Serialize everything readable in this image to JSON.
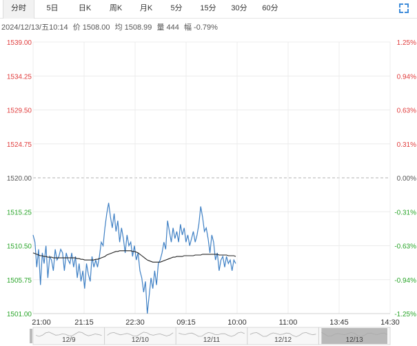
{
  "tabs": [
    {
      "label": "分时",
      "active": true
    },
    {
      "label": "5日",
      "active": false
    },
    {
      "label": "日K",
      "active": false
    },
    {
      "label": "周K",
      "active": false
    },
    {
      "label": "月K",
      "active": false
    },
    {
      "label": "5分",
      "active": false
    },
    {
      "label": "15分",
      "active": false
    },
    {
      "label": "30分",
      "active": false
    },
    {
      "label": "60分",
      "active": false
    }
  ],
  "fullscreen_icon": "fullscreen-icon",
  "info": {
    "datetime": "2024/12/13/五10:14",
    "price": "价 1508.00",
    "avg": "均 1508.99",
    "volume": "量 444",
    "change": "幅 -0.79%"
  },
  "colors": {
    "up": "#e03c3c",
    "down": "#2aa52a",
    "price_line": "#3d7fc4",
    "avg_line": "#222222",
    "axis_text": "#555555"
  },
  "chart_data": {
    "type": "line",
    "base": 1520.0,
    "ylim": [
      1501.0,
      1539.0
    ],
    "y_ticks_left": [
      "1539.00",
      "1534.25",
      "1529.50",
      "1524.75",
      "1520.00",
      "1515.25",
      "1510.50",
      "1505.75",
      "1501.00"
    ],
    "y_ticks_right": [
      "1.25%",
      "0.94%",
      "0.63%",
      "0.31%",
      "0.00%",
      "-0.31%",
      "-0.63%",
      "-0.94%",
      "-1.25%"
    ],
    "x_ticks": [
      "21:00",
      "21:15",
      "22:30",
      "09:15",
      "10:00",
      "11:00",
      "13:45",
      "14:30"
    ],
    "series": [
      {
        "values": [
          1512.0,
          1511.0,
          1507.5,
          1510.0,
          1505.0,
          1509.5,
          1508.0,
          1510.5,
          1506.0,
          1509.0,
          1508.5,
          1507.0,
          1510.0,
          1508.5,
          1509.0,
          1510.0,
          1509.5,
          1507.0,
          1509.5,
          1508.5,
          1508.0,
          1509.5,
          1507.5,
          1509.0,
          1506.0,
          1508.0,
          1505.5,
          1507.0,
          1504.5,
          1508.0,
          1506.5,
          1505.5,
          1509.0,
          1507.5,
          1508.5,
          1507.5,
          1509.0,
          1511.0,
          1510.5,
          1513.0,
          1515.0,
          1516.5,
          1514.5,
          1513.0,
          1515.0,
          1512.5,
          1514.0,
          1511.0,
          1513.0,
          1511.5,
          1509.5,
          1512.0,
          1510.5,
          1511.0,
          1509.0,
          1510.5,
          1508.5,
          1509.5,
          1507.0,
          1506.0,
          1504.0,
          1505.5,
          1501.0,
          1503.5,
          1506.0,
          1504.5,
          1507.0,
          1505.0,
          1508.0,
          1508.5,
          1509.5,
          1511.0,
          1510.0,
          1514.0,
          1512.5,
          1511.0,
          1513.0,
          1511.5,
          1512.5,
          1511.0,
          1513.5,
          1512.0,
          1513.0,
          1511.0,
          1512.0,
          1510.5,
          1511.5,
          1512.5,
          1511.0,
          1512.0,
          1513.5,
          1516.0,
          1514.5,
          1512.5,
          1513.0,
          1511.5,
          1509.5,
          1512.0,
          1511.0,
          1508.5,
          1509.5,
          1507.0,
          1508.5,
          1509.0,
          1507.5,
          1509.0,
          1508.0,
          1508.5,
          1507.0,
          1508.5,
          1508.0
        ],
        "avg": [
          1509.5,
          1509.4,
          1509.3,
          1509.2,
          1509.1,
          1509.1,
          1509.0,
          1509.0,
          1508.9,
          1508.9,
          1508.9,
          1508.8,
          1508.8,
          1508.8,
          1508.8,
          1508.8,
          1508.8,
          1508.8,
          1508.8,
          1508.8,
          1508.8,
          1508.8,
          1508.8,
          1508.8,
          1508.7,
          1508.7,
          1508.6,
          1508.6,
          1508.5,
          1508.5,
          1508.5,
          1508.5,
          1508.5,
          1508.5,
          1508.6,
          1508.6,
          1508.7,
          1508.8,
          1508.9,
          1509.0,
          1509.2,
          1509.3,
          1509.4,
          1509.5,
          1509.6,
          1509.7,
          1509.7,
          1509.8,
          1509.8,
          1509.8,
          1509.8,
          1509.8,
          1509.8,
          1509.8,
          1509.7,
          1509.7,
          1509.6,
          1509.5,
          1509.3,
          1509.1,
          1508.9,
          1508.7,
          1508.5,
          1508.4,
          1508.3,
          1508.2,
          1508.2,
          1508.2,
          1508.2,
          1508.2,
          1508.3,
          1508.4,
          1508.5,
          1508.6,
          1508.7,
          1508.8,
          1508.9,
          1508.9,
          1509.0,
          1509.0,
          1509.0,
          1509.0,
          1509.1,
          1509.1,
          1509.1,
          1509.1,
          1509.1,
          1509.1,
          1509.2,
          1509.2,
          1509.2,
          1509.2,
          1509.3,
          1509.3,
          1509.3,
          1509.3,
          1509.3,
          1509.3,
          1509.3,
          1509.3,
          1509.3,
          1509.2,
          1509.2,
          1509.2,
          1509.2,
          1509.2,
          1509.1,
          1509.1,
          1509.1,
          1509.1,
          1509.0
        ]
      }
    ],
    "grid": true
  },
  "navigator": {
    "labels": [
      "12/9",
      "12/10",
      "12/11",
      "12/12",
      "12/13"
    ]
  }
}
